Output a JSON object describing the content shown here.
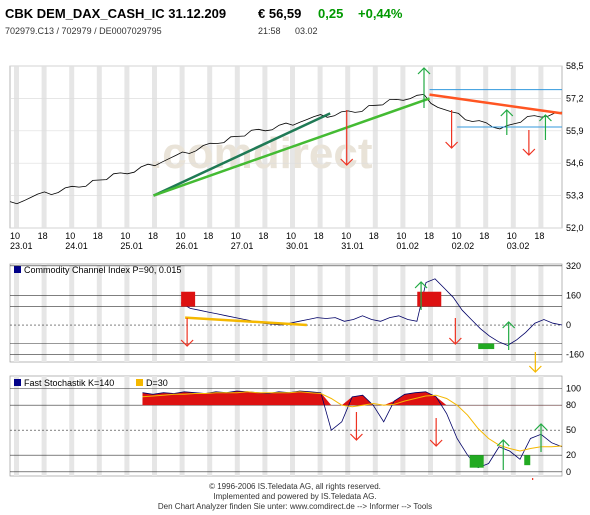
{
  "header": {
    "title": "CBK DEM_DAX_CASH_IC 31.12.209",
    "price": "€ 56,59",
    "change_abs": "0,25",
    "change_pct": "+0,44%",
    "ids": "702979.C13  /  702979  /  DE0007029795",
    "time": "21:58",
    "date": "03.02",
    "positive_color": "#009900"
  },
  "watermark": ".comdirect",
  "chart_data": [
    {
      "type": "line",
      "y_ticks": [
        "58,5",
        "57,2",
        "55,9",
        "54,6",
        "53,3",
        "52,0"
      ],
      "ylim": [
        52.0,
        58.5
      ],
      "x_hour_labels": [
        "10",
        "18",
        "10",
        "18",
        "10",
        "18",
        "10",
        "18",
        "10",
        "18",
        "10",
        "18",
        "10",
        "18",
        "10",
        "18",
        "10",
        "18",
        "10",
        "18"
      ],
      "x_date_labels": [
        "23.01",
        "24.01",
        "25.01",
        "26.01",
        "27.01",
        "30.01",
        "31.01",
        "01.02",
        "02.02",
        "03.02"
      ],
      "price": [
        53.0,
        53.15,
        53.3,
        53.4,
        53.55,
        53.7,
        53.85,
        54.0,
        54.15,
        54.3,
        54.5,
        54.7,
        54.85,
        55.05,
        55.25,
        55.45,
        55.6,
        55.75,
        55.9,
        56.0,
        56.15,
        56.3,
        56.4,
        56.5,
        56.6,
        56.7,
        56.85,
        57.0,
        57.1,
        57.25,
        57.3,
        56.9,
        56.6,
        56.4,
        56.25,
        56.1,
        56.05,
        56.3,
        56.45,
        56.55,
        56.59
      ],
      "trendlines": [
        {
          "name": "dark",
          "color": "#1f7a55",
          "from": [
            0.26,
            53.3
          ],
          "to": [
            0.58,
            56.6
          ]
        },
        {
          "name": "light",
          "color": "#44bb33",
          "from": [
            0.26,
            53.3
          ],
          "to": [
            0.76,
            57.2
          ]
        },
        {
          "name": "resistance",
          "color": "#ff5522",
          "from": [
            0.76,
            57.35
          ],
          "to": [
            1.0,
            56.6
          ]
        }
      ]
    },
    {
      "type": "line",
      "title": "Commodity Channel Index P=90, 0.015",
      "y_ticks": [
        "320",
        "160",
        "0",
        "-160"
      ],
      "ylim": [
        -200,
        330
      ],
      "values": [
        120,
        90,
        80,
        70,
        60,
        50,
        40,
        30,
        20,
        10,
        5,
        0,
        10,
        20,
        30,
        40,
        35,
        40,
        20,
        30,
        50,
        30,
        20,
        40,
        50,
        30,
        20,
        230,
        250,
        200,
        150,
        80,
        30,
        -20,
        -60,
        -90,
        -110,
        -80,
        -40,
        10,
        30,
        10,
        0
      ],
      "overbought": 100,
      "oversold": -100
    },
    {
      "type": "line",
      "title": "Fast Stochastik K=140",
      "legend": [
        "Fast Stochastik K=140",
        "D=30"
      ],
      "y_ticks": [
        "100",
        "80",
        "50",
        "20",
        "0"
      ],
      "ylim": [
        -5,
        115
      ],
      "k_values": [
        95,
        93,
        95,
        94,
        96,
        95,
        94,
        96,
        95,
        97,
        96,
        95,
        94,
        96,
        95,
        97,
        96,
        95,
        50,
        60,
        90,
        92,
        80,
        60,
        85,
        93,
        95,
        96,
        90,
        70,
        40,
        20,
        5,
        10,
        30,
        25,
        15,
        40,
        45,
        35,
        30
      ],
      "d_values": [
        90,
        91,
        92,
        93,
        93,
        94,
        94,
        95,
        95,
        95,
        96,
        95,
        95,
        95,
        95,
        96,
        95,
        94,
        88,
        80,
        78,
        80,
        82,
        80,
        81,
        85,
        88,
        91,
        92,
        88,
        80,
        68,
        52,
        40,
        32,
        28,
        25,
        28,
        30,
        30,
        31
      ],
      "upper": 80,
      "lower": 20
    }
  ],
  "footer": {
    "line1": "© 1996-2006 IS.Teledata AG, all rights reserved.",
    "line2": "Implemented and powered by IS.Teledata AG.",
    "line3": "Den Chart Analyzer finden Sie unter: www.comdirect.de --> Informer --> Tools"
  }
}
